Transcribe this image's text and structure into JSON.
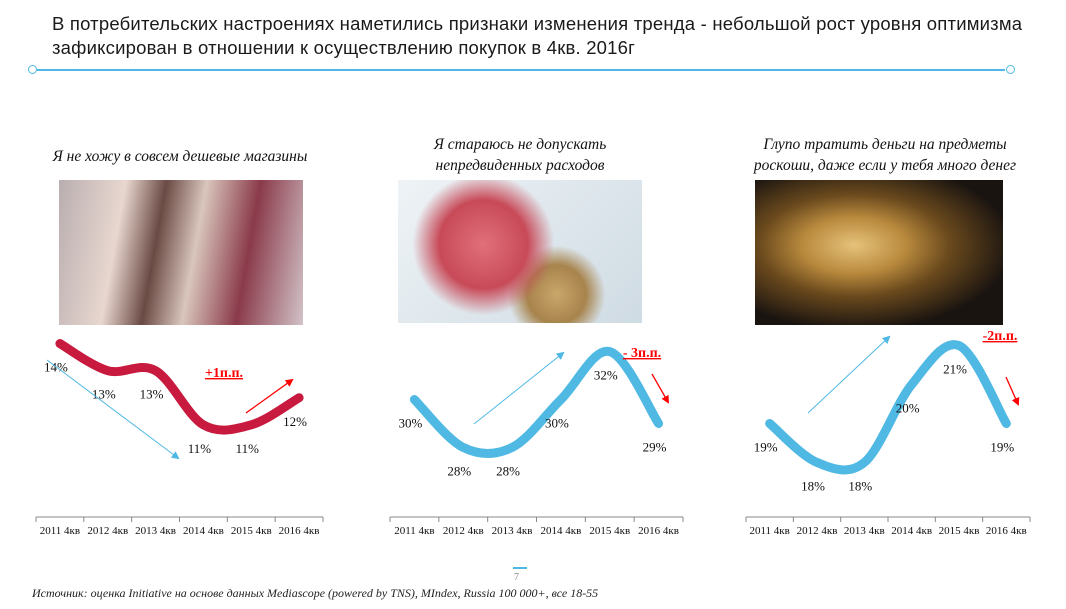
{
  "header": {
    "title": "В потребительских настроениях наметились признаки изменения тренда - небольшой рост уровня оптимизма зафиксирован в отношении к осуществлению покупок в 4кв. 2016г"
  },
  "colors": {
    "accent": "#4fb9e3",
    "red_line": "#c8193f",
    "annotation": "#ff0000"
  },
  "chart_data": [
    {
      "type": "line",
      "title": "Я не хожу в совсем дешевые магазины",
      "categories": [
        "2011 4кв",
        "2012 4кв",
        "2013 4кв",
        "2014 4кв",
        "2015 4кв",
        "2016 4кв"
      ],
      "values": [
        14,
        13,
        13,
        11,
        11,
        12
      ],
      "labels": [
        "14%",
        "13%",
        "13%",
        "11%",
        "11%",
        "12%"
      ],
      "ylim": [
        7.6,
        14.5
      ],
      "color": "#c8193f",
      "annotation": "+1п.п.",
      "trend_arrow": "down",
      "change_arrow": "up"
    },
    {
      "type": "line",
      "title": "Я стараюсь не допускать непредвиденных расходов",
      "categories": [
        "2011 4кв",
        "2012 4кв",
        "2013 4кв",
        "2014 4кв",
        "2015 4кв",
        "2016 4кв"
      ],
      "values": [
        30,
        28,
        28,
        30,
        32,
        29
      ],
      "labels": [
        "30%",
        "28%",
        "28%",
        "30%",
        "32%",
        "29%"
      ],
      "ylim": [
        25.1,
        32.9
      ],
      "color": "#4fb9e3",
      "annotation": "- 3п.п.",
      "trend_arrow": "up",
      "change_arrow": "down"
    },
    {
      "type": "line",
      "title": "Глупо тратить деньги на предметы роскоши, даже если у тебя много денег",
      "categories": [
        "2011 4кв",
        "2012 4кв",
        "2013 4кв",
        "2014 4кв",
        "2015 4кв",
        "2016 4кв"
      ],
      "values": [
        19,
        18,
        18,
        20,
        21,
        19
      ],
      "labels": [
        "19%",
        "18%",
        "18%",
        "20%",
        "21%",
        "19%"
      ],
      "ylim": [
        16.6,
        21.4
      ],
      "color": "#4fb9e3",
      "annotation": "-2п.п.",
      "trend_arrow": "up",
      "change_arrow": "down"
    }
  ],
  "footer": {
    "source": "Источник: оценка Initiative на основе данных Mediascope (powered by TNS), MIndex, Russia 100 000+, все 18-55",
    "page": "7"
  }
}
